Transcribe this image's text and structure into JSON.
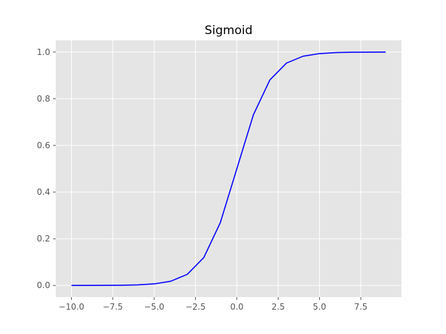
{
  "chart_data": {
    "type": "line",
    "title": "Sigmoid",
    "xlabel": "",
    "ylabel": "",
    "x": [
      -10,
      -9,
      -8,
      -7,
      -6,
      -5,
      -4,
      -3,
      -2,
      -1,
      0,
      1,
      2,
      3,
      4,
      5,
      6,
      7,
      8,
      9
    ],
    "series": [
      {
        "values": [
          4.54e-05,
          0.0001234,
          0.0003354,
          0.0009111,
          0.0024726,
          0.0066929,
          0.0179862,
          0.0474259,
          0.1192029,
          0.2689414,
          0.5,
          0.7310586,
          0.8807971,
          0.9525741,
          0.9820138,
          0.9933071,
          0.9975274,
          0.9990889,
          0.9996646,
          0.9998766
        ],
        "color": "#0000ff"
      }
    ],
    "xlim": [
      -10.95,
      9.95
    ],
    "ylim": [
      -0.05,
      1.05
    ],
    "xticks": [
      -10.0,
      -7.5,
      -5.0,
      -2.5,
      0.0,
      2.5,
      5.0,
      7.5
    ],
    "xtick_labels": [
      "−10.0",
      "−7.5",
      "−5.0",
      "−2.5",
      "0.0",
      "2.5",
      "5.0",
      "7.5"
    ],
    "yticks": [
      0.0,
      0.2,
      0.4,
      0.6,
      0.8,
      1.0
    ],
    "ytick_labels": [
      "0.0",
      "0.2",
      "0.4",
      "0.6",
      "0.8",
      "1.0"
    ],
    "grid": true,
    "style": "ggplot",
    "background_color": "#e5e5e5",
    "grid_color": "#ffffff"
  }
}
